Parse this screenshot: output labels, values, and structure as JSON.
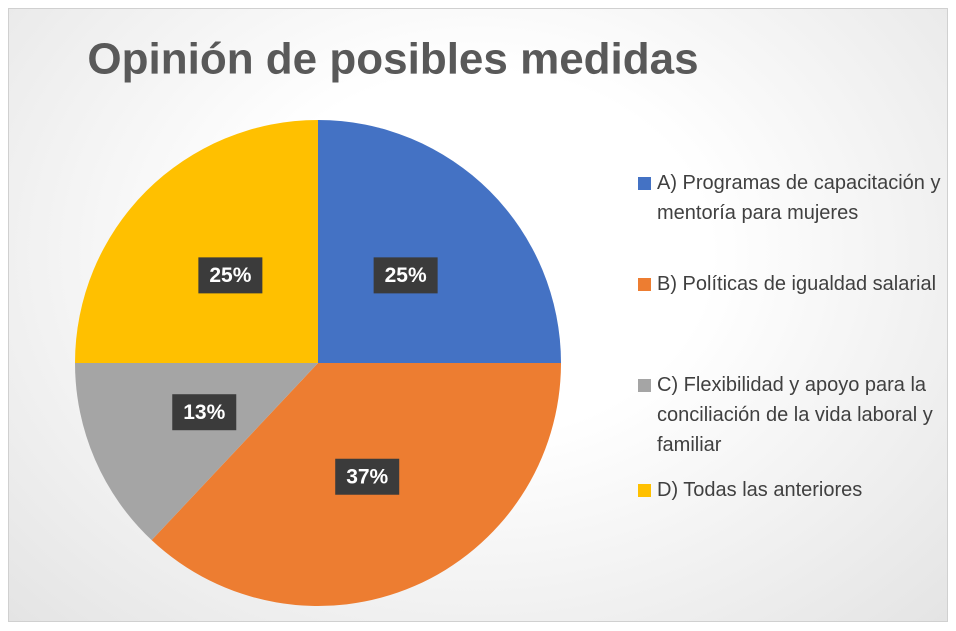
{
  "chart_data": {
    "type": "pie",
    "title": "Opinión de posibles medidas",
    "categories": [
      "A) Programas de capacitación y mentoría para mujeres",
      "B) Políticas de igualdad salarial",
      "C) Flexibilidad y apoyo para la conciliación de la vida laboral y familiar",
      "D) Todas las anteriores"
    ],
    "values": [
      25,
      37,
      13,
      25
    ],
    "value_labels": [
      "25%",
      "37%",
      "13%",
      "25%"
    ],
    "colors": [
      "#4472c4",
      "#ed7d31",
      "#a5a5a5",
      "#ffc000"
    ]
  }
}
